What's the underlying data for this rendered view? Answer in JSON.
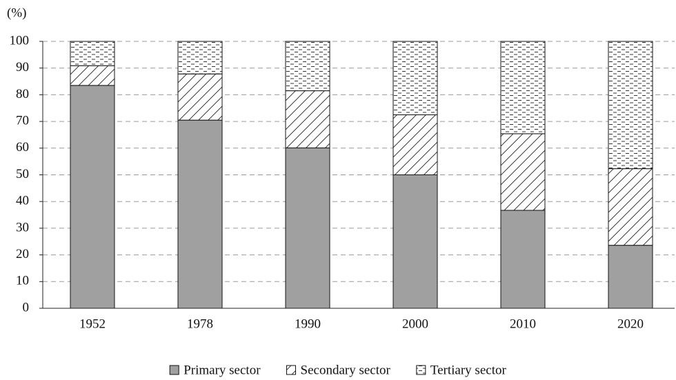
{
  "chart_data": {
    "type": "stacked_bar",
    "y_label": "(%)",
    "categories": [
      "1952",
      "1978",
      "1990",
      "2000",
      "2010",
      "2020"
    ],
    "series": [
      {
        "name": "Primary sector",
        "color": "#a0a0a0",
        "pattern": "solid",
        "values": [
          83.5,
          70.5,
          60.1,
          50.0,
          36.7,
          23.6
        ]
      },
      {
        "name": "Secondary sector",
        "color": "#ffffff",
        "pattern": "diagonal",
        "values": [
          7.4,
          17.3,
          21.4,
          22.5,
          28.7,
          28.7
        ]
      },
      {
        "name": "Tertiary sector",
        "color": "#ffffff",
        "pattern": "dashed",
        "values": [
          9.1,
          12.2,
          18.5,
          27.5,
          34.6,
          47.7
        ]
      }
    ],
    "ylim": [
      0,
      100
    ],
    "yticks": [
      0,
      10,
      20,
      30,
      40,
      50,
      60,
      70,
      80,
      90,
      100
    ],
    "grid": true,
    "legend": "bottom"
  }
}
